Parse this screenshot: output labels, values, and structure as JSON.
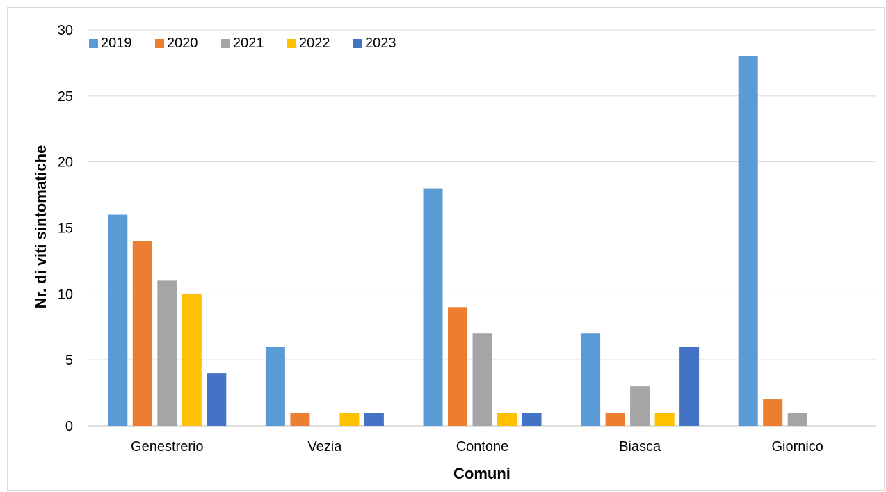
{
  "chart_data": {
    "type": "bar",
    "title": "",
    "xlabel": "Comuni",
    "ylabel": "Nr. di viti sintomatiche",
    "ylim": [
      0,
      30
    ],
    "yticks": [
      0,
      5,
      10,
      15,
      20,
      25,
      30
    ],
    "grid": true,
    "legend_position": "top-left",
    "categories": [
      "Genestrerio",
      "Vezia",
      "Contone",
      "Biasca",
      "Giornico"
    ],
    "series": [
      {
        "name": "2019",
        "color": "#5b9bd5",
        "values": [
          16,
          6,
          18,
          7,
          28
        ]
      },
      {
        "name": "2020",
        "color": "#ed7d31",
        "values": [
          14,
          1,
          9,
          1,
          2
        ]
      },
      {
        "name": "2021",
        "color": "#a5a5a5",
        "values": [
          11,
          0,
          7,
          3,
          1
        ]
      },
      {
        "name": "2022",
        "color": "#ffc000",
        "values": [
          10,
          1,
          1,
          1,
          0
        ]
      },
      {
        "name": "2023",
        "color": "#4472c4",
        "values": [
          4,
          1,
          1,
          6,
          0
        ]
      }
    ]
  }
}
